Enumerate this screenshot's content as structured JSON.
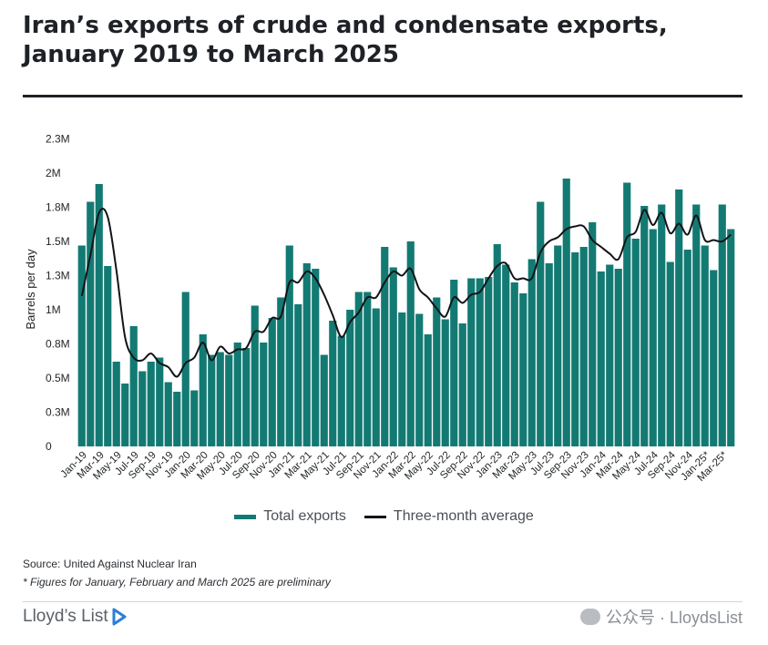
{
  "header": {
    "title_line1": "Iran’s exports of crude and condensate exports,",
    "title_line2": "January 2019 to March 2025"
  },
  "legend": {
    "bar_label": "Total exports",
    "line_label": "Three-month average"
  },
  "footer": {
    "source": "Source: United Against Nuclear Iran",
    "note": "* Figures for January, February and March 2025 are preliminary",
    "logo": "Lloyd’s List",
    "watermark": "公众号 · LloydsList"
  },
  "colors": {
    "bar": "#137a73",
    "line": "#111418",
    "title_rule": "#1e2126"
  },
  "chart_data": {
    "type": "bar",
    "ylabel": "Barrels per day",
    "xlabel": "",
    "ylim": [
      0,
      2300000
    ],
    "y_ticks": [
      {
        "value": 0,
        "label": "0"
      },
      {
        "value": 250000,
        "label": "0.3M"
      },
      {
        "value": 500000,
        "label": "0.5M"
      },
      {
        "value": 750000,
        "label": "0.8M"
      },
      {
        "value": 1000000,
        "label": "1M"
      },
      {
        "value": 1250000,
        "label": "1.3M"
      },
      {
        "value": 1500000,
        "label": "1.5M"
      },
      {
        "value": 1750000,
        "label": "1.8M"
      },
      {
        "value": 2000000,
        "label": "2M"
      },
      {
        "value": 2250000,
        "label": "2.3M"
      }
    ],
    "x_tick_labels": [
      {
        "index": 0,
        "label": "Jan-19"
      },
      {
        "index": 2,
        "label": "Mar-19"
      },
      {
        "index": 4,
        "label": "May-19"
      },
      {
        "index": 6,
        "label": "Jul-19"
      },
      {
        "index": 8,
        "label": "Sep-19"
      },
      {
        "index": 10,
        "label": "Nov-19"
      },
      {
        "index": 12,
        "label": "Jan-20"
      },
      {
        "index": 14,
        "label": "Mar-20"
      },
      {
        "index": 16,
        "label": "May-20"
      },
      {
        "index": 18,
        "label": "Jul-20"
      },
      {
        "index": 20,
        "label": "Sep-20"
      },
      {
        "index": 22,
        "label": "Nov-20"
      },
      {
        "index": 24,
        "label": "Jan-21"
      },
      {
        "index": 26,
        "label": "Mar-21"
      },
      {
        "index": 28,
        "label": "May-21"
      },
      {
        "index": 30,
        "label": "Jul-21"
      },
      {
        "index": 32,
        "label": "Sep-21"
      },
      {
        "index": 34,
        "label": "Nov-21"
      },
      {
        "index": 36,
        "label": "Jan-22"
      },
      {
        "index": 38,
        "label": "Mar-22"
      },
      {
        "index": 40,
        "label": "May-22"
      },
      {
        "index": 42,
        "label": "Jul-22"
      },
      {
        "index": 44,
        "label": "Sep-22"
      },
      {
        "index": 46,
        "label": "Nov-22"
      },
      {
        "index": 48,
        "label": "Jan-23"
      },
      {
        "index": 50,
        "label": "Mar-23"
      },
      {
        "index": 52,
        "label": "May-23"
      },
      {
        "index": 54,
        "label": "Jul-23"
      },
      {
        "index": 56,
        "label": "Sep-23"
      },
      {
        "index": 58,
        "label": "Nov-23"
      },
      {
        "index": 60,
        "label": "Jan-24"
      },
      {
        "index": 62,
        "label": "Mar-24"
      },
      {
        "index": 64,
        "label": "May-24"
      },
      {
        "index": 66,
        "label": "Jul-24"
      },
      {
        "index": 68,
        "label": "Sep-24"
      },
      {
        "index": 70,
        "label": "Nov-24"
      },
      {
        "index": 72,
        "label": "Jan-25*"
      },
      {
        "index": 74,
        "label": "Mar-25*"
      }
    ],
    "series": [
      {
        "name": "Total exports",
        "type": "bar",
        "values": [
          1470000,
          1790000,
          1920000,
          1320000,
          620000,
          460000,
          880000,
          550000,
          620000,
          650000,
          470000,
          400000,
          1130000,
          410000,
          820000,
          670000,
          690000,
          670000,
          760000,
          720000,
          1030000,
          760000,
          940000,
          1090000,
          1470000,
          1040000,
          1340000,
          1300000,
          670000,
          920000,
          810000,
          1000000,
          1130000,
          1130000,
          1010000,
          1460000,
          1310000,
          980000,
          1500000,
          970000,
          820000,
          1090000,
          930000,
          1220000,
          900000,
          1230000,
          1230000,
          1240000,
          1480000,
          1330000,
          1200000,
          1120000,
          1370000,
          1790000,
          1340000,
          1470000,
          1960000,
          1420000,
          1460000,
          1640000,
          1280000,
          1330000,
          1300000,
          1930000,
          1520000,
          1760000,
          1590000,
          1770000,
          1350000,
          1880000,
          1440000,
          1770000,
          1470000,
          1290000,
          1770000,
          1590000
        ]
      },
      {
        "name": "Three-month average",
        "type": "line",
        "values": [
          1100000,
          1400000,
          1710000,
          1680000,
          1290000,
          800000,
          650000,
          630000,
          680000,
          610000,
          580000,
          510000,
          610000,
          650000,
          760000,
          630000,
          730000,
          680000,
          710000,
          720000,
          840000,
          840000,
          940000,
          950000,
          1200000,
          1200000,
          1280000,
          1230000,
          1110000,
          960000,
          800000,
          910000,
          980000,
          1090000,
          1090000,
          1200000,
          1280000,
          1250000,
          1300000,
          1150000,
          1090000,
          1010000,
          950000,
          1090000,
          1050000,
          1110000,
          1130000,
          1230000,
          1320000,
          1340000,
          1230000,
          1230000,
          1230000,
          1420000,
          1500000,
          1530000,
          1590000,
          1610000,
          1610000,
          1510000,
          1460000,
          1410000,
          1370000,
          1530000,
          1570000,
          1730000,
          1620000,
          1710000,
          1560000,
          1630000,
          1550000,
          1690000,
          1510000,
          1510000,
          1500000,
          1550000
        ]
      }
    ],
    "grid": false,
    "legend_position": "bottom-center"
  }
}
